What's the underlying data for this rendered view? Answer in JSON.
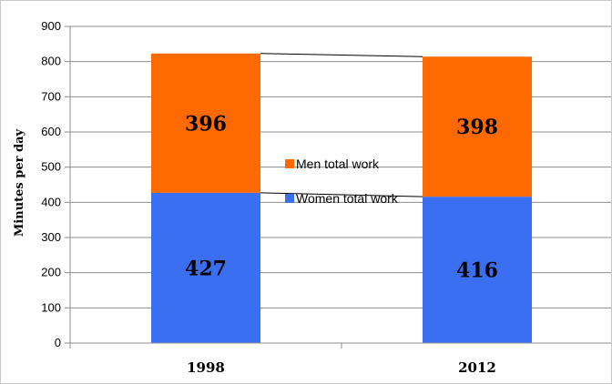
{
  "chart_data": {
    "type": "bar",
    "stacked": true,
    "categories": [
      "1998",
      "2012"
    ],
    "series": [
      {
        "name": "Women total work",
        "values": [
          427,
          416
        ],
        "color": "#3b6ff2"
      },
      {
        "name": "Men total work",
        "values": [
          396,
          398
        ],
        "color": "#ff6a00"
      }
    ],
    "ylabel": "Minutes per day",
    "xlabel": "",
    "title": "",
    "ylim": [
      0,
      900
    ],
    "yticks": [
      0,
      100,
      200,
      300,
      400,
      500,
      600,
      700,
      800,
      900
    ],
    "grid": true,
    "legend_position": "center",
    "series_lines": true
  }
}
